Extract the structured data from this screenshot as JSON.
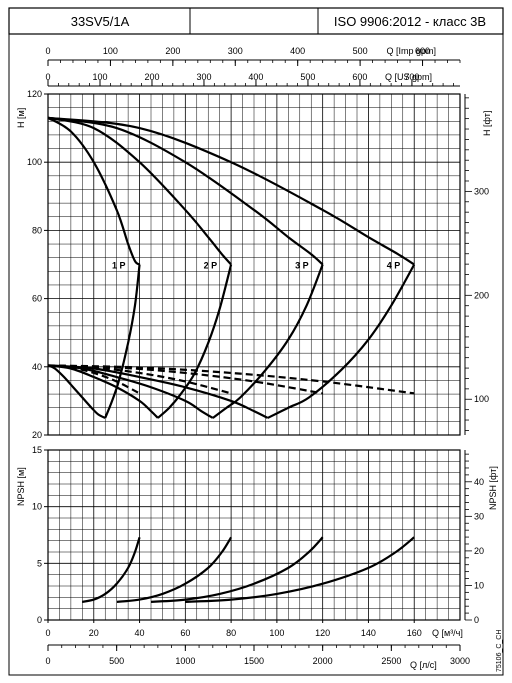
{
  "header": {
    "model": "33SV5/1A",
    "standard": "ISO 9906:2012 - класс 3B"
  },
  "footer": {
    "code": "75106_C_CH"
  },
  "axes": {
    "imp_gpm": {
      "label": "Q [Imp gpm]",
      "ticks": [
        0,
        100,
        200,
        300,
        400,
        500,
        600
      ],
      "range": [
        0,
        660
      ]
    },
    "us_gpm": {
      "label": "Q [US gpm]",
      "ticks": [
        0,
        100,
        200,
        300,
        400,
        500,
        600,
        700
      ],
      "range": [
        0,
        792.5
      ]
    },
    "q_m3h": {
      "label": "Q [м³/ч]",
      "ticks": [
        0,
        20,
        40,
        60,
        80,
        100,
        120,
        140,
        160
      ],
      "range": [
        0,
        180
      ]
    },
    "q_ls": {
      "label": "Q [л/с]",
      "ticks": [
        0,
        500,
        1000,
        1500,
        2000,
        2500,
        3000
      ],
      "range": [
        0,
        3000
      ]
    },
    "h_m": {
      "label": "H [м]",
      "ticks": [
        20,
        40,
        60,
        80,
        100,
        120
      ],
      "range": [
        20,
        120
      ]
    },
    "h_ft": {
      "label": "H [фт]",
      "ticks": [
        100,
        200,
        300
      ],
      "range": [
        65.6,
        393.7
      ]
    },
    "npsh_m": {
      "label": "NPSH [м]",
      "ticks": [
        0,
        5,
        10,
        15
      ],
      "range": [
        0,
        15
      ]
    },
    "npsh_ft": {
      "label": "NPSH [фт]",
      "ticks": [
        0,
        10,
        20,
        30,
        40
      ],
      "range": [
        0,
        49.2
      ]
    }
  },
  "chart_data": [
    {
      "type": "line",
      "title": "",
      "xlabel": "Q [м³/ч]",
      "ylabel": "H [м]",
      "xlim": [
        0,
        180
      ],
      "ylim": [
        20,
        120
      ],
      "grid": true,
      "series": [
        {
          "name": "1 P",
          "x": [
            0,
            10,
            20,
            30,
            35,
            38,
            40,
            38,
            35,
            31,
            28,
            25
          ],
          "y": [
            113,
            109,
            100,
            86,
            76,
            71,
            70,
            58,
            47,
            36,
            30,
            25
          ],
          "style": "solid"
        },
        {
          "name": "2 P",
          "x": [
            0,
            20,
            40,
            60,
            70,
            76,
            80,
            75,
            70,
            64,
            58,
            53,
            48
          ],
          "y": [
            113,
            110,
            100,
            86,
            78,
            73,
            70,
            57,
            47,
            38,
            32,
            28,
            25
          ],
          "style": "solid"
        },
        {
          "name": "3 P",
          "x": [
            0,
            30,
            60,
            90,
            105,
            115,
            120,
            113,
            105,
            95,
            84,
            78,
            72
          ],
          "y": [
            113,
            110,
            100,
            86,
            78,
            73,
            70,
            58,
            48,
            39,
            31,
            28,
            25
          ],
          "style": "solid"
        },
        {
          "name": "4 P",
          "x": [
            0,
            40,
            80,
            120,
            140,
            153,
            160,
            150,
            140,
            128,
            114,
            105,
            96
          ],
          "y": [
            113,
            110,
            100,
            86,
            78,
            73,
            70,
            58,
            48,
            39,
            31,
            28,
            25
          ],
          "style": "solid"
        },
        {
          "name": "",
          "x": [
            0,
            3,
            7,
            11,
            15,
            19,
            22,
            25
          ],
          "y": [
            40.4,
            39.5,
            37,
            34,
            31,
            28,
            26,
            25
          ],
          "style": "solid"
        },
        {
          "name": "",
          "x": [
            0,
            10,
            20,
            30,
            40,
            45,
            48
          ],
          "y": [
            40.4,
            39.5,
            37,
            34,
            30,
            27,
            25
          ],
          "style": "solid"
        },
        {
          "name": "",
          "x": [
            0,
            15,
            30,
            45,
            60,
            67,
            72
          ],
          "y": [
            40.4,
            39.5,
            37,
            34,
            30,
            27,
            25
          ],
          "style": "solid"
        },
        {
          "name": "",
          "x": [
            0,
            20,
            40,
            60,
            80,
            90,
            96
          ],
          "y": [
            40.4,
            39.5,
            37,
            34,
            30,
            27,
            25
          ],
          "style": "solid"
        },
        {
          "name": "",
          "x": [
            0,
            10,
            20,
            30,
            40
          ],
          "y": [
            40.4,
            39.8,
            38.2,
            35.7,
            32.2
          ],
          "style": "dashed"
        },
        {
          "name": "",
          "x": [
            0,
            20,
            40,
            60,
            80
          ],
          "y": [
            40.4,
            39.8,
            38.2,
            35.7,
            32.2
          ],
          "style": "dashed"
        },
        {
          "name": "",
          "x": [
            0,
            30,
            60,
            90,
            120
          ],
          "y": [
            40.4,
            39.8,
            38.2,
            35.7,
            32.2
          ],
          "style": "dashed"
        },
        {
          "name": "",
          "x": [
            0,
            40,
            80,
            120,
            160
          ],
          "y": [
            40.4,
            39.8,
            38.2,
            35.7,
            32.2
          ],
          "style": "dashed"
        }
      ]
    },
    {
      "type": "line",
      "title": "",
      "xlabel": "Q [м³/ч]",
      "ylabel": "NPSH [м]",
      "xlim": [
        0,
        180
      ],
      "ylim": [
        0,
        15
      ],
      "grid": true,
      "series": [
        {
          "name": "",
          "x": [
            15,
            20,
            25,
            30,
            35,
            38,
            40
          ],
          "y": [
            1.6,
            1.8,
            2.3,
            3.2,
            4.6,
            6.0,
            7.3
          ]
        },
        {
          "name": "",
          "x": [
            30,
            40,
            50,
            60,
            70,
            76,
            80
          ],
          "y": [
            1.6,
            1.8,
            2.3,
            3.2,
            4.6,
            6.0,
            7.3
          ]
        },
        {
          "name": "",
          "x": [
            45,
            60,
            75,
            90,
            105,
            114,
            120
          ],
          "y": [
            1.6,
            1.8,
            2.3,
            3.2,
            4.6,
            6.0,
            7.3
          ]
        },
        {
          "name": "",
          "x": [
            60,
            80,
            100,
            120,
            140,
            152,
            160
          ],
          "y": [
            1.6,
            1.8,
            2.3,
            3.2,
            4.6,
            6.0,
            7.3
          ]
        }
      ]
    }
  ]
}
